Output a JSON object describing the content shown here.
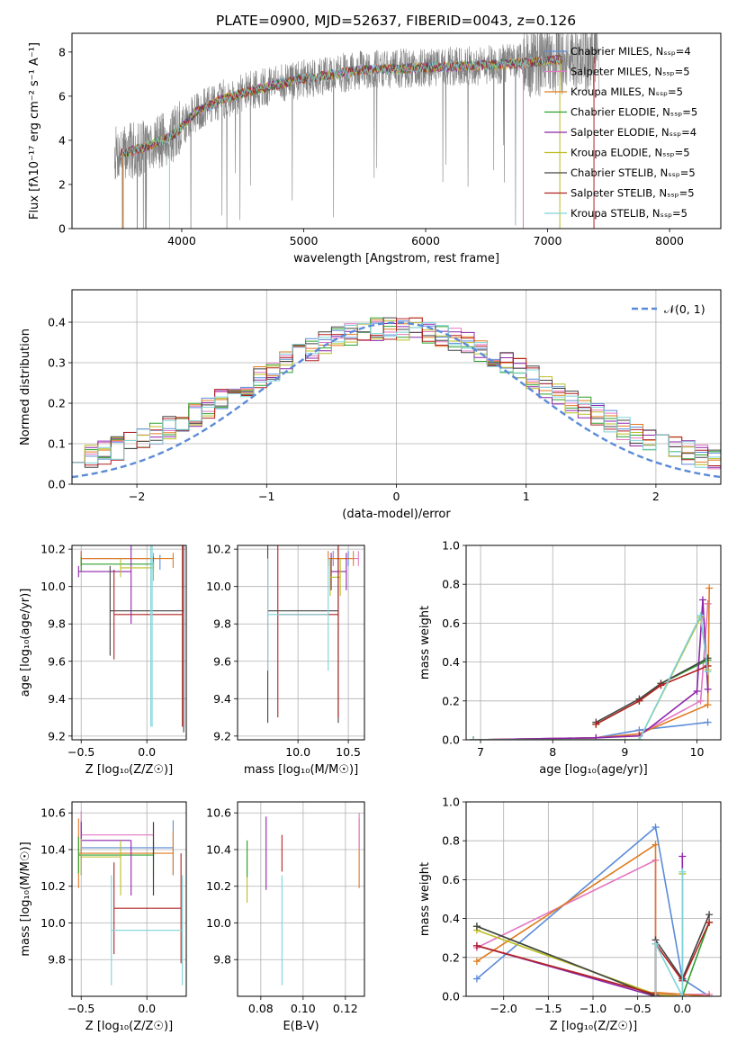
{
  "figure_title": "PLATE=0900, MJD=52637, FIBERID=0043, z=0.126",
  "colors": {
    "models": [
      "#5b8bd8",
      "#e377c2",
      "#e07b1e",
      "#2ca02c",
      "#8e24aa",
      "#bcbd22",
      "#444444",
      "#b22222",
      "#7fd3d8"
    ],
    "data": "#808080",
    "normal": "#5b8bd8",
    "grid": "#b0b0b0"
  },
  "chart_data": [
    {
      "id": "spectrum",
      "type": "line",
      "title": "PLATE=0900, MJD=52637, FIBERID=0043, z=0.126",
      "xlabel": "wavelength [Angstrom, rest frame]",
      "ylabel": "Flux [fλ10⁻¹⁷ erg cm⁻² s⁻¹ A⁻¹]",
      "xlim": [
        3100,
        8420
      ],
      "ylim": [
        0,
        8.85
      ],
      "xticks": [
        4000,
        5000,
        6000,
        7000,
        8000
      ],
      "yticks": [
        0,
        2,
        4,
        6,
        8
      ],
      "grid": false,
      "legend_position": "right",
      "legend": [
        {
          "label": "Chabrier MILES, N_SSP=4"
        },
        {
          "label": "Salpeter MILES, N_SSP=5"
        },
        {
          "label": "Kroupa MILES, N_SSP=5"
        },
        {
          "label": "Chabrier ELODIE, N_SSP=5"
        },
        {
          "label": "Salpeter ELODIE, N_SSP=4"
        },
        {
          "label": "Kroupa ELODIE, N_SSP=5"
        },
        {
          "label": "Chabrier STELIB, N_SSP=5"
        },
        {
          "label": "Salpeter STELIB, N_SSP=5"
        },
        {
          "label": "Kroupa STELIB, N_SSP=5"
        }
      ],
      "continuum": {
        "x": [
          3500,
          3650,
          3800,
          3950,
          4100,
          4300,
          4600,
          5000,
          5500,
          6000,
          6500,
          7000,
          7400
        ],
        "y": [
          3.4,
          3.6,
          3.9,
          4.3,
          5.2,
          5.8,
          6.3,
          6.8,
          7.2,
          7.3,
          7.4,
          7.6,
          7.8
        ]
      },
      "data_range": [
        3450,
        7420
      ],
      "model_range": [
        3500,
        7120
      ]
    },
    {
      "id": "residuals",
      "type": "line",
      "xlabel": "(data-model)/error",
      "ylabel": "Normed distribution",
      "xlim": [
        -2.5,
        2.5
      ],
      "ylim": [
        0,
        0.48
      ],
      "xticks": [
        -2,
        -1,
        0,
        1,
        2
      ],
      "yticks": [
        0.0,
        0.1,
        0.2,
        0.3,
        0.4
      ],
      "grid": true,
      "legend_position": "top-right",
      "legend": [
        {
          "label": "𝒩(0, 1)",
          "style": "dashed"
        }
      ],
      "bin_width": 0.1
    },
    {
      "id": "age-Z",
      "type": "scatter",
      "xlabel": "Z [log₁₀(Z/Z☉)]",
      "ylabel": "age  [log₁₀(age/yr)]",
      "xlim": [
        -0.57,
        0.3
      ],
      "ylim": [
        9.18,
        10.22
      ],
      "xticks": [
        -0.5,
        0.0
      ],
      "yticks": [
        9.2,
        9.4,
        9.6,
        9.8,
        10.0,
        10.2
      ],
      "grid": true,
      "points": [
        {
          "model": 0,
          "x": [
            -0.5,
            0.1
          ],
          "y": [
            10.15,
            10.13
          ],
          "ey": [
            0.04,
            0.04
          ]
        },
        {
          "model": 1,
          "x": [
            -0.5,
            0.05
          ],
          "y": [
            10.15,
            10.14
          ],
          "ey": [
            0.04,
            0.04
          ]
        },
        {
          "model": 2,
          "x": [
            -0.5,
            0.2
          ],
          "y": [
            10.15,
            10.14
          ],
          "ey": [
            0.04,
            0.04
          ]
        },
        {
          "model": 3,
          "x": [
            -0.5,
            0.05
          ],
          "y": [
            10.12,
            10.12
          ],
          "ey": [
            0.04,
            0.04
          ]
        },
        {
          "model": 4,
          "x": [
            -0.52,
            -0.12
          ],
          "y": [
            10.08,
            10.1
          ],
          "ey": [
            0.03,
            0.3
          ]
        },
        {
          "model": 5,
          "x": [
            -0.2,
            0.05
          ],
          "y": [
            10.1,
            10.08
          ],
          "ey": [
            0.05,
            0.05
          ]
        },
        {
          "model": 6,
          "x": [
            -0.28,
            0.28
          ],
          "y": [
            9.87,
            9.87
          ],
          "ey": [
            0.24,
            0.65
          ]
        },
        {
          "model": 7,
          "x": [
            -0.25,
            0.27
          ],
          "y": [
            9.85,
            9.85
          ],
          "ey": [
            0.24,
            0.6
          ]
        },
        {
          "model": 8,
          "x": [
            0.03,
            0.04
          ],
          "y": [
            9.85,
            9.85
          ],
          "ey": [
            0.6,
            0.6
          ]
        }
      ]
    },
    {
      "id": "age-mass",
      "type": "scatter",
      "xlabel": "mass [log₁₀(M/M☉)]",
      "ylabel": "",
      "xlim": [
        9.4,
        10.66
      ],
      "ylim": [
        9.18,
        10.22
      ],
      "xticks": [
        10.0,
        10.5
      ],
      "yticks": [
        9.2,
        9.4,
        9.6,
        9.8,
        10.0,
        10.2
      ],
      "grid": true,
      "points": [
        {
          "model": 0,
          "x": [
            10.35,
            10.5
          ],
          "y": [
            10.15,
            10.15
          ],
          "ey": [
            0.04,
            0.04
          ]
        },
        {
          "model": 1,
          "x": [
            10.35,
            10.6
          ],
          "y": [
            10.15,
            10.15
          ],
          "ey": [
            0.04,
            0.04
          ]
        },
        {
          "model": 2,
          "x": [
            10.3,
            10.55
          ],
          "y": [
            10.15,
            10.15
          ],
          "ey": [
            0.04,
            0.04
          ]
        },
        {
          "model": 4,
          "x": [
            10.33,
            10.48
          ],
          "y": [
            10.08,
            10.08
          ],
          "ey": [
            0.1,
            0.1
          ]
        },
        {
          "model": 5,
          "x": [
            10.32,
            10.42
          ],
          "y": [
            10.05,
            10.05
          ],
          "ey": [
            0.1,
            0.1
          ]
        },
        {
          "model": 6,
          "x": [
            9.7,
            10.4
          ],
          "y": [
            9.87,
            9.87
          ],
          "ey": [
            0.6,
            0.6
          ]
        },
        {
          "model": 7,
          "x": [
            9.8,
            10.4
          ],
          "y": [
            9.85,
            9.85
          ],
          "ey": [
            0.55,
            0.55
          ]
        },
        {
          "model": 8,
          "x": [
            9.7,
            10.3
          ],
          "y": [
            9.85,
            9.85
          ],
          "ey": [
            0.3,
            0.3
          ]
        }
      ]
    },
    {
      "id": "weight-age",
      "type": "line",
      "xlabel": "age  [log₁₀(age/yr)]",
      "ylabel": "mass weight",
      "xlim": [
        6.8,
        10.33
      ],
      "ylim": [
        0,
        1.0
      ],
      "xticks": [
        7,
        8,
        9,
        10
      ],
      "yticks": [
        0.0,
        0.2,
        0.4,
        0.6,
        0.8,
        1.0
      ],
      "grid": true,
      "series": [
        {
          "model": 0,
          "x": [
            6.9,
            8.6,
            9.2,
            10.15
          ],
          "y": [
            0.0,
            0.01,
            0.05,
            0.09
          ]
        },
        {
          "model": 1,
          "x": [
            6.9,
            8.6,
            9.2,
            10.05,
            10.15
          ],
          "y": [
            0.0,
            0.01,
            0.03,
            0.2,
            0.7
          ]
        },
        {
          "model": 2,
          "x": [
            6.9,
            8.6,
            9.2,
            10.15,
            10.17
          ],
          "y": [
            0.0,
            0.01,
            0.03,
            0.18,
            0.78
          ]
        },
        {
          "model": 3,
          "x": [
            8.6,
            9.2,
            9.5,
            10.15
          ],
          "y": [
            0.08,
            0.2,
            0.29,
            0.41
          ]
        },
        {
          "model": 4,
          "x": [
            6.9,
            8.6,
            9.2,
            10.0,
            10.08,
            10.15
          ],
          "y": [
            0.0,
            0.01,
            0.02,
            0.25,
            0.72,
            0.26
          ]
        },
        {
          "model": 5,
          "x": [
            6.9,
            9.2,
            10.05,
            10.15
          ],
          "y": [
            0.0,
            0.0,
            0.63,
            0.36
          ]
        },
        {
          "model": 6,
          "x": [
            8.6,
            9.2,
            9.5,
            10.15
          ],
          "y": [
            0.09,
            0.21,
            0.29,
            0.42
          ]
        },
        {
          "model": 7,
          "x": [
            8.6,
            9.2,
            9.5,
            10.15
          ],
          "y": [
            0.08,
            0.2,
            0.28,
            0.38
          ]
        },
        {
          "model": 8,
          "x": [
            6.9,
            9.2,
            10.05,
            10.15
          ],
          "y": [
            0.0,
            0.0,
            0.64,
            0.35
          ]
        }
      ]
    },
    {
      "id": "mass-Z",
      "type": "scatter",
      "xlabel": "Z [log₁₀(Z/Z☉)]",
      "ylabel": "mass [log₁₀(M/M☉)]",
      "xlim": [
        -0.57,
        0.3
      ],
      "ylim": [
        9.6,
        10.66
      ],
      "xticks": [
        -0.5,
        0.0
      ],
      "yticks": [
        9.8,
        10.0,
        10.2,
        10.4,
        10.6
      ],
      "grid": true,
      "points": [
        {
          "model": 0,
          "x": [
            -0.5,
            0.2
          ],
          "y": [
            10.41,
            10.41
          ],
          "ey": [
            0.15,
            0.15
          ]
        },
        {
          "model": 1,
          "x": [
            -0.5,
            0.05
          ],
          "y": [
            10.48,
            10.45
          ],
          "ey": [
            0.13,
            0.1
          ]
        },
        {
          "model": 2,
          "x": [
            -0.52,
            0.2
          ],
          "y": [
            10.38,
            10.38
          ],
          "ey": [
            0.19,
            0.12
          ]
        },
        {
          "model": 3,
          "x": [
            -0.52,
            0.05
          ],
          "y": [
            10.37,
            10.35
          ],
          "ey": [
            0.1,
            0.1
          ]
        },
        {
          "model": 4,
          "x": [
            -0.5,
            -0.12
          ],
          "y": [
            10.45,
            10.3
          ],
          "ey": [
            0.1,
            0.15
          ]
        },
        {
          "model": 5,
          "x": [
            -0.5,
            -0.2
          ],
          "y": [
            10.36,
            10.3
          ],
          "ey": [
            0.1,
            0.15
          ]
        },
        {
          "model": 6,
          "x": [
            0.05,
            0.05
          ],
          "y": [
            10.35,
            10.35
          ],
          "ey": [
            0.2,
            0.2
          ]
        },
        {
          "model": 7,
          "x": [
            -0.25,
            0.26
          ],
          "y": [
            10.08,
            10.08
          ],
          "ey": [
            0.25,
            0.3
          ]
        },
        {
          "model": 8,
          "x": [
            -0.27,
            0.27
          ],
          "y": [
            9.96,
            9.96
          ],
          "ey": [
            0.3,
            0.3
          ]
        }
      ]
    },
    {
      "id": "mass-ebv",
      "type": "scatter",
      "xlabel": "E(B-V)",
      "ylabel": "",
      "xlim": [
        0.069,
        0.129
      ],
      "ylim": [
        9.6,
        10.66
      ],
      "xticks": [
        0.08,
        0.1,
        0.12
      ],
      "yticks": [
        9.8,
        10.0,
        10.2,
        10.4,
        10.6
      ],
      "grid": true,
      "points": [
        {
          "model": 5,
          "x": [
            0.0735
          ],
          "y": [
            10.28
          ],
          "ey": [
            0.17
          ]
        },
        {
          "model": 3,
          "x": [
            0.0735
          ],
          "y": [
            10.35
          ],
          "ey": [
            0.1
          ]
        },
        {
          "model": 4,
          "x": [
            0.0825
          ],
          "y": [
            10.38
          ],
          "ey": [
            0.2
          ]
        },
        {
          "model": 7,
          "x": [
            0.09
          ],
          "y": [
            10.38
          ],
          "ey": [
            0.1
          ]
        },
        {
          "model": 8,
          "x": [
            0.09
          ],
          "y": [
            9.96
          ],
          "ey": [
            0.3
          ]
        },
        {
          "model": 2,
          "x": [
            0.1265
          ],
          "y": [
            10.38
          ],
          "ey": [
            0.19
          ]
        },
        {
          "model": 1,
          "x": [
            0.1265
          ],
          "y": [
            10.5
          ],
          "ey": [
            0.1
          ]
        }
      ]
    },
    {
      "id": "weight-Z",
      "type": "line",
      "xlabel": "Z [log₁₀(Z/Z☉)]",
      "ylabel": "mass weight",
      "xlim": [
        -2.42,
        0.43
      ],
      "ylim": [
        0,
        1.0
      ],
      "xticks": [
        -2.0,
        -1.5,
        -1.0,
        -0.5,
        0.0
      ],
      "yticks": [
        0.0,
        0.2,
        0.4,
        0.6,
        0.8,
        1.0
      ],
      "grid": true,
      "series": [
        {
          "model": 0,
          "x": [
            -2.3,
            -0.3,
            0.0,
            0.3
          ],
          "y": [
            0.09,
            0.87,
            0.09,
            0.0
          ]
        },
        {
          "model": 1,
          "x": [
            -2.3,
            -0.3,
            -0.3,
            0.3
          ],
          "y": [
            0.25,
            0.7,
            0.01,
            0.01
          ]
        },
        {
          "model": 2,
          "x": [
            -2.3,
            -0.3,
            -0.3,
            0.3
          ],
          "y": [
            0.18,
            0.78,
            0.02,
            0.0
          ]
        },
        {
          "model": 3,
          "x": [
            -2.3,
            -0.3,
            0.0,
            0.3
          ],
          "y": [
            0.36,
            0.0,
            0.0,
            0.38
          ]
        },
        {
          "model": 4,
          "x": [
            -2.3,
            -0.3,
            0.0,
            0.0
          ],
          "y": [
            0.26,
            0.0,
            0.0,
            0.72
          ]
        },
        {
          "model": 5,
          "x": [
            -2.3,
            -0.3,
            0.0,
            0.0
          ],
          "y": [
            0.34,
            0.01,
            0.0,
            0.63
          ]
        },
        {
          "model": 6,
          "x": [
            -2.3,
            -0.3,
            -0.3,
            0.0,
            0.3
          ],
          "y": [
            0.36,
            0.0,
            0.29,
            0.09,
            0.42
          ]
        },
        {
          "model": 7,
          "x": [
            -2.3,
            -0.3,
            -0.3,
            0.0,
            0.3
          ],
          "y": [
            0.26,
            0.01,
            0.27,
            0.08,
            0.38
          ]
        },
        {
          "model": 8,
          "x": [
            -0.3,
            -0.3,
            0.0,
            0.0
          ],
          "y": [
            0.0,
            0.27,
            0.0,
            0.64
          ]
        }
      ]
    }
  ]
}
